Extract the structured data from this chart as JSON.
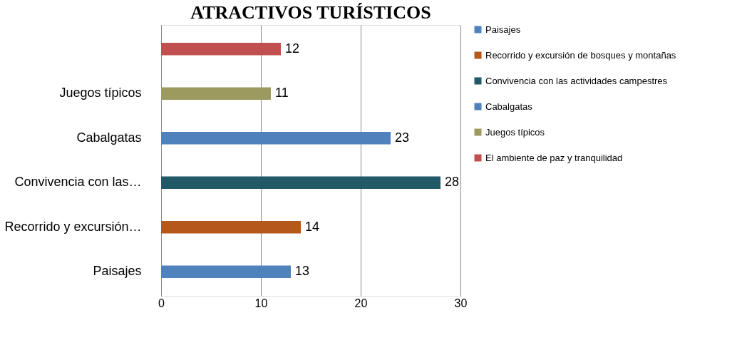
{
  "chart_data": {
    "type": "bar",
    "orientation": "horizontal",
    "title": "ATRACTIVOS TURÍSTICOS",
    "categories": [
      null,
      "Juegos típicos",
      "Cabalgatas",
      "Convivencia con las…",
      "Recorrido y excursión…",
      "Paisajes"
    ],
    "series": [
      {
        "name": "Paisajes",
        "color": "#4f81bd",
        "values": [
          null,
          null,
          null,
          null,
          null,
          13
        ]
      },
      {
        "name": "Recorrido y excursión de bosques y montañas",
        "color": "#b5581c",
        "values": [
          null,
          null,
          null,
          null,
          14,
          null
        ]
      },
      {
        "name": "Convivencia con las actividades campestres",
        "color": "#215968",
        "values": [
          null,
          null,
          null,
          28,
          null,
          null
        ]
      },
      {
        "name": "Cabalgatas",
        "color": "#4f81bd",
        "values": [
          null,
          null,
          23,
          null,
          null,
          null
        ]
      },
      {
        "name": "Juegos típicos",
        "color": "#9c9a5f",
        "values": [
          null,
          11,
          null,
          null,
          null,
          null
        ]
      },
      {
        "name": "El ambiente de paz y tranquilidad",
        "color": "#c0504d",
        "values": [
          12,
          null,
          null,
          null,
          null,
          null
        ]
      }
    ],
    "xlim": [
      0,
      30
    ],
    "xticks": [
      0,
      10,
      20,
      30
    ],
    "grid": "x",
    "legend": "right",
    "data_labels": true
  }
}
